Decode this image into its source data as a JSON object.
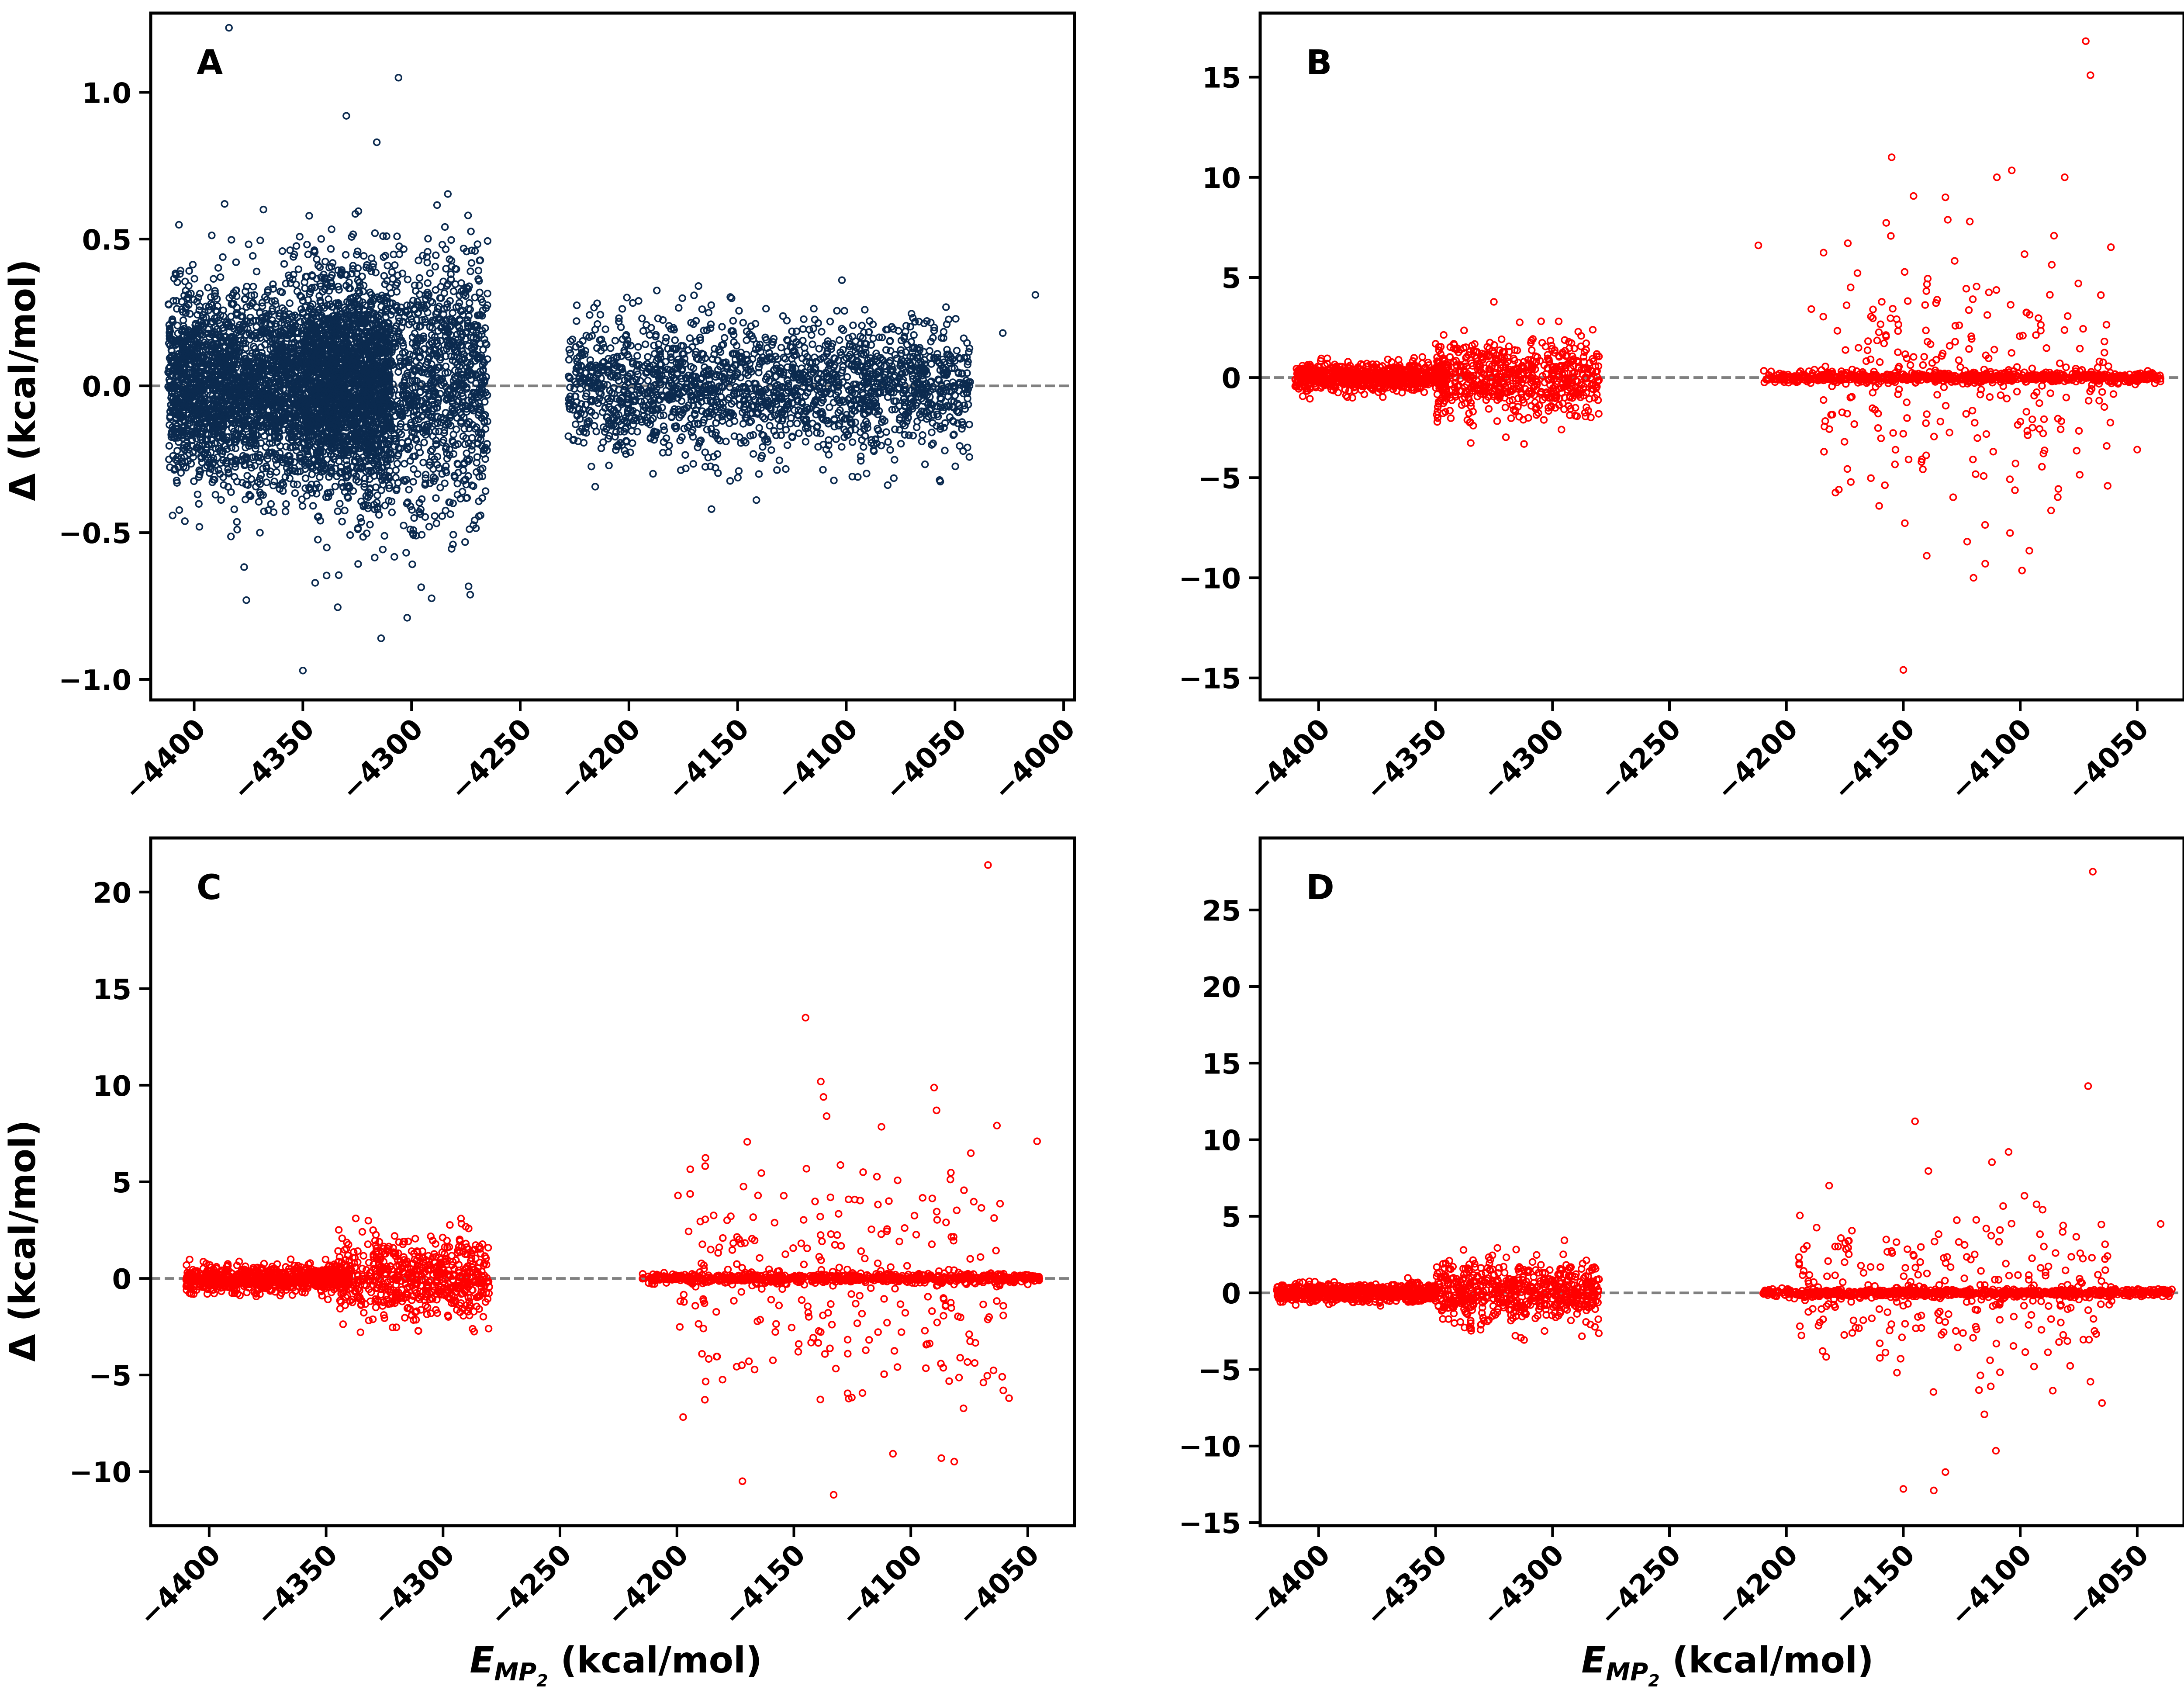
{
  "figure": {
    "xlabel_main": "E",
    "xlabel_sub": "MP",
    "xlabel_subsub": "2",
    "xlabel_unit": " (kcal/mol)",
    "ylabel": "Δ (kcal/mol)",
    "zero_line_color": "#808080"
  },
  "chart_data": [
    {
      "type": "scatter",
      "panel_label": "A",
      "color": "#0b2a4f",
      "xlim": [
        -4420,
        -3995
      ],
      "ylim": [
        -1.07,
        1.27
      ],
      "xticks": [
        -4400,
        -4350,
        -4300,
        -4250,
        -4200,
        -4150,
        -4100,
        -4050,
        -4000
      ],
      "yticks": [
        -1.0,
        -0.5,
        0.0,
        0.5,
        1.0
      ],
      "ytick_labels": [
        "−1.0",
        "−0.5",
        "0.0",
        "0.5",
        "1.0"
      ],
      "clusters": [
        {
          "x_range": [
            -4412,
            -4310
          ],
          "y_spread": 0.16,
          "count": 3400
        },
        {
          "x_range": [
            -4350,
            -4265
          ],
          "y_spread": 0.22,
          "count": 1700
        },
        {
          "x_range": [
            -4228,
            -4043
          ],
          "y_spread": 0.11,
          "count": 1800
        }
      ],
      "outliers": [
        [
          -4384,
          1.22
        ],
        [
          -4306,
          1.05
        ],
        [
          -4316,
          0.83
        ],
        [
          -4330,
          0.92
        ],
        [
          -4386,
          0.62
        ],
        [
          -4350,
          -0.97
        ],
        [
          -4314,
          -0.86
        ],
        [
          -4302,
          -0.79
        ],
        [
          -4376,
          -0.73
        ],
        [
          -4013,
          0.31
        ],
        [
          -4028,
          0.18
        ],
        [
          -4102,
          0.36
        ],
        [
          -4162,
          -0.42
        ],
        [
          -4168,
          0.34
        ]
      ]
    },
    {
      "type": "scatter",
      "panel_label": "B",
      "color": "#ff0000",
      "xlim": [
        -4425,
        -4030
      ],
      "ylim": [
        -16.1,
        18.2
      ],
      "xticks": [
        -4400,
        -4350,
        -4300,
        -4250,
        -4200,
        -4150,
        -4100,
        -4050
      ],
      "yticks": [
        -15,
        -10,
        -5,
        0,
        5,
        10,
        15
      ],
      "ytick_labels": [
        "−15",
        "−10",
        "−5",
        "0",
        "5",
        "10",
        "15"
      ],
      "clusters": [
        {
          "x_range": [
            -4410,
            -4345
          ],
          "y_spread": 0.35,
          "count": 700
        },
        {
          "x_range": [
            -4350,
            -4280
          ],
          "y_spread": 1.0,
          "count": 600
        },
        {
          "x_range": [
            -4210,
            -4040
          ],
          "y_spread": 0.12,
          "count": 700
        },
        {
          "x_range": [
            -4190,
            -4060
          ],
          "y_spread": 3.2,
          "count": 260
        }
      ],
      "outliers": [
        [
          -4072,
          16.8
        ],
        [
          -4070,
          15.1
        ],
        [
          -4155,
          11.0
        ],
        [
          -4081,
          10.0
        ],
        [
          -4132,
          9.0
        ],
        [
          -4110,
          10.0
        ],
        [
          -4150,
          -14.6
        ],
        [
          -4120,
          -10.0
        ],
        [
          -4115,
          -9.3
        ],
        [
          -4140,
          -8.9
        ],
        [
          -4050,
          -3.6
        ],
        [
          -4212,
          6.6
        ]
      ]
    },
    {
      "type": "scatter",
      "panel_label": "C",
      "color": "#ff0000",
      "xlim": [
        -4425,
        -4030
      ],
      "ylim": [
        -12.8,
        22.8
      ],
      "xticks": [
        -4400,
        -4350,
        -4300,
        -4250,
        -4200,
        -4150,
        -4100,
        -4050
      ],
      "yticks": [
        -10,
        -5,
        0,
        5,
        10,
        15,
        20
      ],
      "ytick_labels": [
        "−10",
        "−5",
        "0",
        "5",
        "10",
        "15",
        "20"
      ],
      "clusters": [
        {
          "x_range": [
            -4410,
            -4340
          ],
          "y_spread": 0.35,
          "count": 700
        },
        {
          "x_range": [
            -4345,
            -4280
          ],
          "y_spread": 1.1,
          "count": 600
        },
        {
          "x_range": [
            -4215,
            -4045
          ],
          "y_spread": 0.12,
          "count": 700
        },
        {
          "x_range": [
            -4200,
            -4060
          ],
          "y_spread": 3.2,
          "count": 260
        }
      ],
      "outliers": [
        [
          -4067,
          21.4
        ],
        [
          -4145,
          13.5
        ],
        [
          -4172,
          -10.5
        ],
        [
          -4133,
          -11.2
        ],
        [
          -4089,
          8.7
        ],
        [
          -4046,
          7.1
        ],
        [
          -4058,
          -6.2
        ],
        [
          -4136,
          8.4
        ]
      ]
    },
    {
      "type": "scatter",
      "panel_label": "D",
      "color": "#ff0000",
      "xlim": [
        -4425,
        -4030
      ],
      "ylim": [
        -15.2,
        29.7
      ],
      "xticks": [
        -4400,
        -4350,
        -4300,
        -4250,
        -4200,
        -4150,
        -4100,
        -4050
      ],
      "yticks": [
        -15,
        -10,
        -5,
        0,
        5,
        10,
        15,
        20,
        25
      ],
      "ytick_labels": [
        "−15",
        "−10",
        "−5",
        "0",
        "5",
        "10",
        "15",
        "20",
        "25"
      ],
      "clusters": [
        {
          "x_range": [
            -4418,
            -4350
          ],
          "y_spread": 0.3,
          "count": 700
        },
        {
          "x_range": [
            -4350,
            -4280
          ],
          "y_spread": 1.0,
          "count": 600
        },
        {
          "x_range": [
            -4210,
            -4035
          ],
          "y_spread": 0.12,
          "count": 700
        },
        {
          "x_range": [
            -4195,
            -4060
          ],
          "y_spread": 3.0,
          "count": 260
        }
      ],
      "outliers": [
        [
          -4069,
          27.5
        ],
        [
          -4071,
          13.5
        ],
        [
          -4145,
          11.2
        ],
        [
          -4150,
          -12.8
        ],
        [
          -4137,
          -12.9
        ],
        [
          -4132,
          -11.7
        ],
        [
          -4040,
          4.5
        ],
        [
          -4105,
          9.2
        ],
        [
          -4070,
          -5.8
        ]
      ]
    }
  ]
}
